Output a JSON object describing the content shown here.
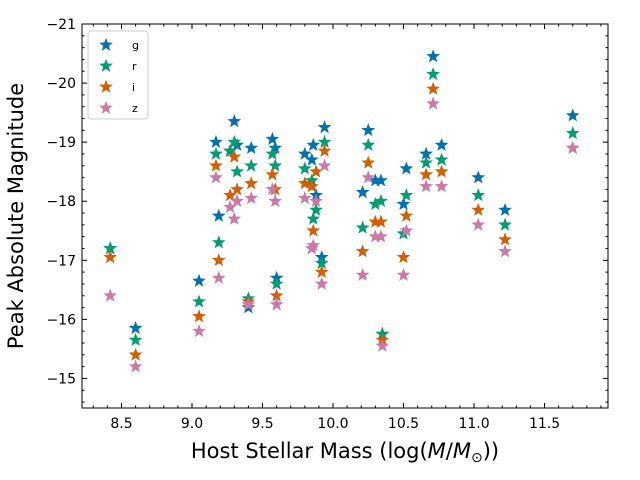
{
  "chart_data": {
    "type": "scatter",
    "title": "",
    "xlabel": "Host Stellar Mass (log(M/M⊙))",
    "xlabel_parts": {
      "prefix": "Host Stellar Mass (log(",
      "mvar": "M",
      "slash": "/",
      "msun": "M",
      "sub": "⊙",
      "suffix": "))"
    },
    "ylabel": "Peak Absolute Magnitude",
    "xlim": [
      8.22,
      11.95
    ],
    "ylim": [
      -14.5,
      -21
    ],
    "y_inverted": true,
    "xticks": [
      8.5,
      9.0,
      9.5,
      10.0,
      10.5,
      11.0,
      11.5
    ],
    "xtick_labels": [
      "8.5",
      "9.0",
      "9.5",
      "10.0",
      "10.5",
      "11.0",
      "11.5"
    ],
    "yticks": [
      -15,
      -16,
      -17,
      -18,
      -19,
      -20,
      -21
    ],
    "ytick_labels": [
      "−15",
      "−16",
      "−17",
      "−18",
      "−19",
      "−20",
      "−21"
    ],
    "legend": {
      "position": "upper-left"
    },
    "marker": "star",
    "series": [
      {
        "name": "g",
        "color": "#0072b2",
        "x": [
          8.42,
          8.6,
          9.05,
          9.17,
          9.19,
          9.27,
          9.3,
          9.32,
          9.4,
          9.42,
          9.57,
          9.59,
          9.6,
          9.8,
          9.85,
          9.86,
          9.88,
          9.92,
          9.94,
          10.21,
          10.25,
          10.3,
          10.34,
          10.35,
          10.5,
          10.52,
          10.66,
          10.71,
          10.77,
          11.03,
          11.22,
          11.7
        ],
        "y": [
          -17.2,
          -15.85,
          -16.65,
          -19.0,
          -17.75,
          -18.85,
          -19.35,
          -18.95,
          -16.2,
          -18.9,
          -19.05,
          -18.9,
          -16.7,
          -18.8,
          -18.7,
          -18.95,
          -18.1,
          -17.05,
          -19.25,
          -18.15,
          -19.2,
          -18.35,
          -18.35,
          -15.75,
          -17.95,
          -18.55,
          -18.8,
          -20.45,
          -18.95,
          -18.4,
          -17.85,
          -19.45
        ]
      },
      {
        "name": "r",
        "color": "#009e73",
        "x": [
          8.42,
          8.6,
          9.05,
          9.17,
          9.19,
          9.27,
          9.3,
          9.32,
          9.4,
          9.42,
          9.57,
          9.59,
          9.6,
          9.8,
          9.85,
          9.86,
          9.88,
          9.92,
          9.94,
          10.21,
          10.25,
          10.3,
          10.34,
          10.35,
          10.5,
          10.52,
          10.66,
          10.71,
          10.77,
          11.03,
          11.22,
          11.7
        ],
        "y": [
          -17.2,
          -15.65,
          -16.3,
          -18.8,
          -17.3,
          -18.85,
          -19.0,
          -18.5,
          -16.35,
          -18.6,
          -18.8,
          -18.6,
          -16.6,
          -18.55,
          -18.35,
          -17.7,
          -17.85,
          -16.95,
          -19.0,
          -17.55,
          -18.95,
          -17.95,
          -18.0,
          -15.75,
          -17.45,
          -18.1,
          -18.65,
          -20.15,
          -18.7,
          -18.1,
          -17.6,
          -19.15
        ]
      },
      {
        "name": "i",
        "color": "#d55e00",
        "x": [
          8.42,
          8.6,
          9.05,
          9.17,
          9.19,
          9.27,
          9.3,
          9.32,
          9.4,
          9.42,
          9.57,
          9.59,
          9.6,
          9.8,
          9.85,
          9.86,
          9.88,
          9.92,
          9.94,
          10.21,
          10.25,
          10.3,
          10.34,
          10.35,
          10.5,
          10.52,
          10.66,
          10.71,
          10.77,
          11.03,
          11.22,
          11.7
        ],
        "y": [
          -17.05,
          -15.4,
          -16.05,
          -18.6,
          -17.0,
          -18.1,
          -18.75,
          -18.2,
          -16.3,
          -18.3,
          -18.45,
          -18.2,
          -16.4,
          -18.3,
          -18.25,
          -17.5,
          -18.5,
          -16.8,
          -18.85,
          -17.15,
          -18.65,
          -17.65,
          -17.65,
          -15.65,
          -17.05,
          -17.75,
          -18.45,
          -19.9,
          -18.5,
          -17.85,
          -17.35,
          -18.9
        ]
      },
      {
        "name": "z",
        "color": "#cc79a7",
        "x": [
          8.42,
          8.6,
          9.05,
          9.17,
          9.19,
          9.27,
          9.3,
          9.32,
          9.4,
          9.42,
          9.57,
          9.59,
          9.6,
          9.8,
          9.85,
          9.86,
          9.88,
          9.92,
          9.94,
          10.21,
          10.25,
          10.3,
          10.34,
          10.35,
          10.5,
          10.52,
          10.66,
          10.71,
          10.77,
          11.03,
          11.22,
          11.7
        ],
        "y": [
          -16.4,
          -15.2,
          -15.8,
          -18.4,
          -16.7,
          -17.9,
          -17.7,
          -18.0,
          -16.25,
          -18.05,
          -18.2,
          -18.0,
          -16.25,
          -18.05,
          -17.2,
          -17.25,
          -18.0,
          -16.6,
          -18.6,
          -16.75,
          -18.4,
          -17.4,
          -17.4,
          -15.55,
          -16.75,
          -17.5,
          -18.25,
          -19.65,
          -18.25,
          -17.6,
          -17.15,
          -18.9
        ]
      }
    ]
  }
}
